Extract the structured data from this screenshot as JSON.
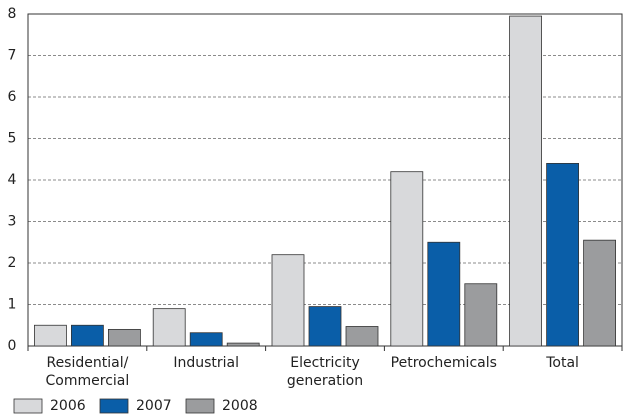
{
  "chart_data": {
    "type": "bar",
    "categories": [
      "Residential/ Commercial",
      "Industrial",
      "Electricity generation",
      "Petrochemicals",
      "Total"
    ],
    "series": [
      {
        "name": "2006",
        "color": "#d8d9db",
        "values": [
          0.5,
          0.9,
          2.2,
          4.2,
          7.95
        ]
      },
      {
        "name": "2007",
        "color": "#0a5ea8",
        "values": [
          0.5,
          0.32,
          0.95,
          2.5,
          4.4
        ]
      },
      {
        "name": "2008",
        "color": "#9b9c9e",
        "values": [
          0.4,
          0.07,
          0.47,
          1.5,
          2.55
        ]
      }
    ],
    "ylim": [
      0,
      8
    ],
    "yticks": [
      0,
      1,
      2,
      3,
      4,
      5,
      6,
      7,
      8
    ],
    "grid": true,
    "legend": "bottom"
  }
}
